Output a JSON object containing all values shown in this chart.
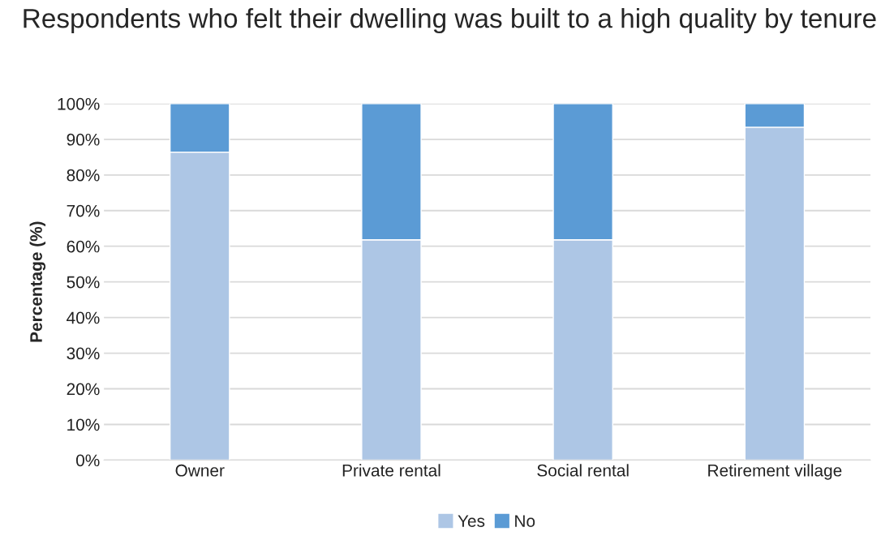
{
  "chart_data": {
    "type": "bar",
    "title": "Respondents who felt their dwelling was built to a high quality by tenure",
    "ylabel": "Percentage (%)",
    "categories": [
      "Owner",
      "Private rental",
      "Social rental",
      "Retirement village"
    ],
    "stacked": true,
    "series": [
      {
        "name": "Yes",
        "color": "#adc6e5",
        "values": [
          86.4,
          61.8,
          61.8,
          93.4
        ]
      },
      {
        "name": "No",
        "color": "#5b9bd5",
        "values": [
          13.6,
          38.2,
          38.2,
          6.6
        ]
      }
    ],
    "ylim": [
      0,
      100
    ],
    "yticks": [
      {
        "value": 0,
        "label": "0%"
      },
      {
        "value": 10,
        "label": "10%"
      },
      {
        "value": 20,
        "label": "20%"
      },
      {
        "value": 30,
        "label": "30%"
      },
      {
        "value": 40,
        "label": "40%"
      },
      {
        "value": 50,
        "label": "50%"
      },
      {
        "value": 60,
        "label": "60%"
      },
      {
        "value": 70,
        "label": "70%"
      },
      {
        "value": 80,
        "label": "80%"
      },
      {
        "value": 90,
        "label": "90%"
      },
      {
        "value": 100,
        "label": "100%"
      }
    ],
    "grid": "y",
    "legend": "bottom"
  }
}
